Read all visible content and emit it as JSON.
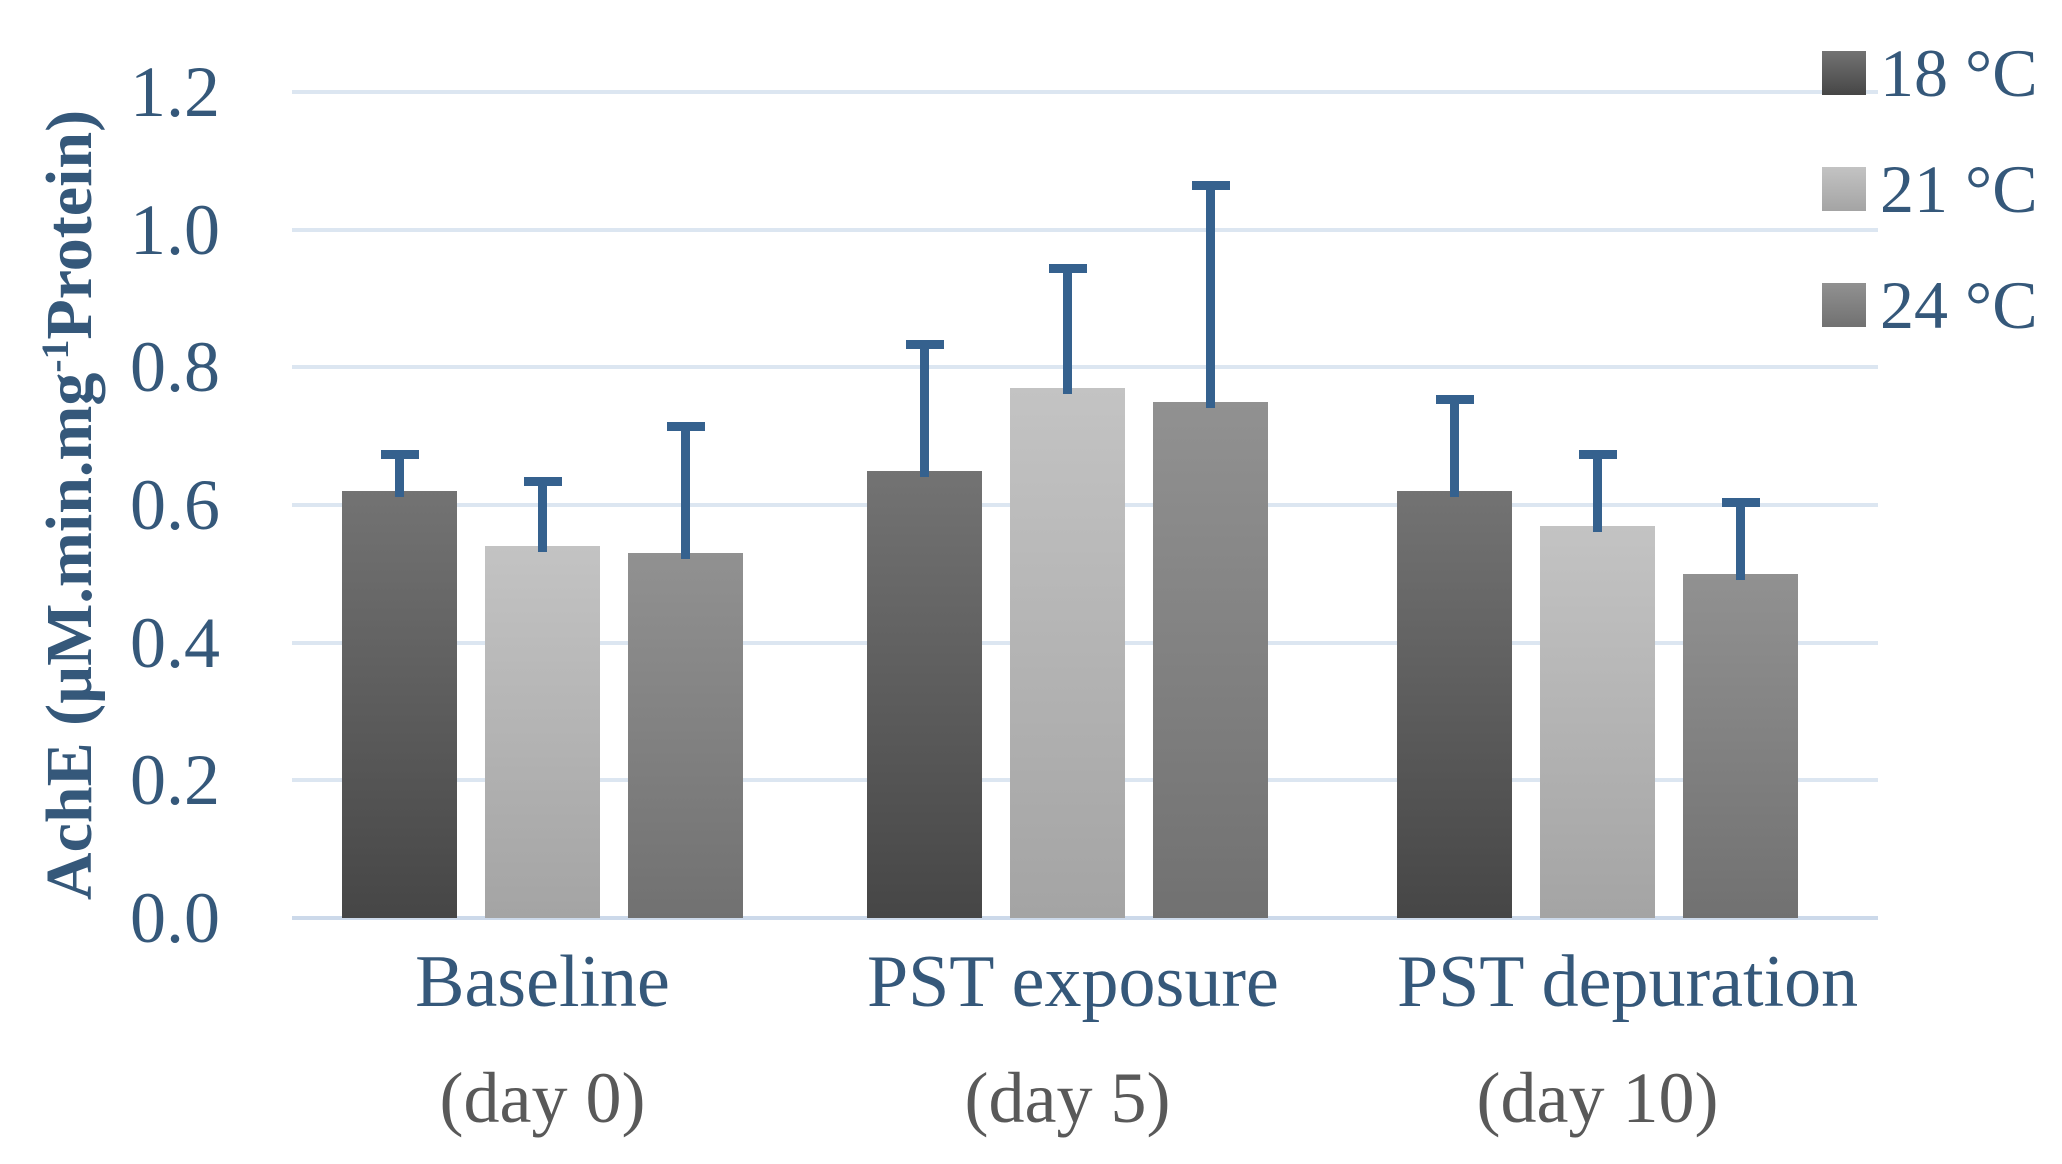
{
  "chart": {
    "ylabel_prefix": "AchE (µM.min.mg",
    "ylabel_sup": "-1",
    "ylabel_suffix": "Protein)"
  },
  "chart_data": {
    "type": "bar",
    "title": "",
    "xlabel": "",
    "ylabel": "AchE (µM.min.mg^-1 Protein)",
    "ylim": [
      0,
      1.2
    ],
    "ytick_step": 0.2,
    "ytick_labels": [
      "1.2",
      "1.0",
      "0.8",
      "0.6",
      "0.4",
      "0.2",
      "0.0"
    ],
    "grid": true,
    "legend_position": "top-right",
    "categories": [
      {
        "label": "Baseline",
        "sublabel": "(day 0)"
      },
      {
        "label": "PST exposure",
        "sublabel": "(day 5)"
      },
      {
        "label": "PST depuration",
        "sublabel": "(day 10)"
      }
    ],
    "series": [
      {
        "name": "18 °C",
        "values": [
          0.62,
          0.65,
          0.62
        ],
        "errors_upper": [
          0.06,
          0.19,
          0.14
        ],
        "color": "#595959",
        "gradient": [
          "#737373",
          "#464646"
        ]
      },
      {
        "name": "21 °C",
        "values": [
          0.54,
          0.77,
          0.57
        ],
        "errors_upper": [
          0.1,
          0.18,
          0.11
        ],
        "color": "#b5b5b5",
        "gradient": [
          "#c3c3c3",
          "#a4a4a4"
        ]
      },
      {
        "name": "24 °C",
        "values": [
          0.53,
          0.75,
          0.5
        ],
        "errors_upper": [
          0.19,
          0.32,
          0.11
        ],
        "color": "#868686",
        "gradient": [
          "#919191",
          "#717171"
        ]
      }
    ],
    "error_bar_color": "#35618E",
    "colors": {
      "axis_text": "#35587A",
      "sublabel_text": "#595959",
      "gridline": "#dce6f1",
      "axis_line": "#ccd9ea",
      "background": "#ffffff"
    }
  }
}
